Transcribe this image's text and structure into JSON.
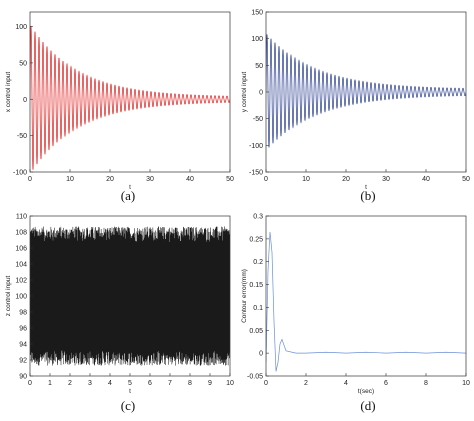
{
  "chart_data": [
    {
      "panel": "(a)",
      "type": "line",
      "title": "",
      "xlabel": "t",
      "ylabel": "x control input",
      "xlim": [
        0,
        50
      ],
      "ylim": [
        -100,
        120
      ],
      "xticks": [
        "0",
        "10",
        "20",
        "30",
        "40",
        "50"
      ],
      "yticks": [
        "-100",
        "-50",
        "0",
        "50",
        "100"
      ],
      "color": "#e02020",
      "series": [
        {
          "kind": "damped-oscillation",
          "initial_amplitude": 100,
          "decay_rate": 0.085,
          "residual_amplitude": 3,
          "period": 1.0,
          "x_range": [
            0,
            50
          ]
        }
      ]
    },
    {
      "panel": "(b)",
      "type": "line",
      "title": "",
      "xlabel": "t",
      "ylabel": "y control input",
      "xlim": [
        0,
        50
      ],
      "ylim": [
        -150,
        150
      ],
      "xticks": [
        "0",
        "10",
        "20",
        "30",
        "40",
        "50"
      ],
      "yticks": [
        "-150",
        "-100",
        "-50",
        "0",
        "50",
        "100",
        "150"
      ],
      "color": "#2a3f8f",
      "series": [
        {
          "kind": "damped-oscillation",
          "initial_amplitude": 105,
          "decay_rate": 0.08,
          "residual_amplitude": 5,
          "period": 1.0,
          "x_range": [
            0,
            50
          ]
        }
      ]
    },
    {
      "panel": "(c)",
      "type": "line",
      "title": "",
      "xlabel": "t",
      "ylabel": "z control input",
      "xlim": [
        0,
        10
      ],
      "ylim": [
        90,
        110
      ],
      "xticks": [
        "0",
        "1",
        "2",
        "3",
        "4",
        "5",
        "6",
        "7",
        "8",
        "9",
        "10"
      ],
      "yticks": [
        "90",
        "92",
        "94",
        "96",
        "98",
        "100",
        "102",
        "104",
        "106",
        "108",
        "110"
      ],
      "color": "#1a1a1a",
      "series": [
        {
          "kind": "dense-oscillation",
          "band_low": 92,
          "band_high": 108,
          "x_range": [
            0,
            10
          ]
        }
      ]
    },
    {
      "panel": "(d)",
      "type": "line",
      "title": "",
      "xlabel": "t(sec)",
      "ylabel": "Contour error(mm)",
      "xlim": [
        0,
        10
      ],
      "ylim": [
        -0.05,
        0.3
      ],
      "xticks": [
        "0",
        "2",
        "4",
        "6",
        "8",
        "10"
      ],
      "yticks": [
        "-0.05",
        "0",
        "0.05",
        "0.1",
        "0.15",
        "0.2",
        "0.25",
        "0.3"
      ],
      "color": "#6b8fd6",
      "series": [
        {
          "x": [
            0,
            0.1,
            0.2,
            0.3,
            0.4,
            0.5,
            0.6,
            0.7,
            0.8,
            1.0,
            1.5,
            2,
            3,
            4,
            5,
            6,
            7,
            8,
            9,
            10
          ],
          "y": [
            -0.02,
            0.18,
            0.265,
            0.22,
            0.07,
            -0.04,
            -0.02,
            0.02,
            0.03,
            0.005,
            0.0,
            0.0,
            0.002,
            0.0,
            0.002,
            0.0,
            0.002,
            0.0,
            0.002,
            0.0
          ]
        }
      ]
    }
  ]
}
